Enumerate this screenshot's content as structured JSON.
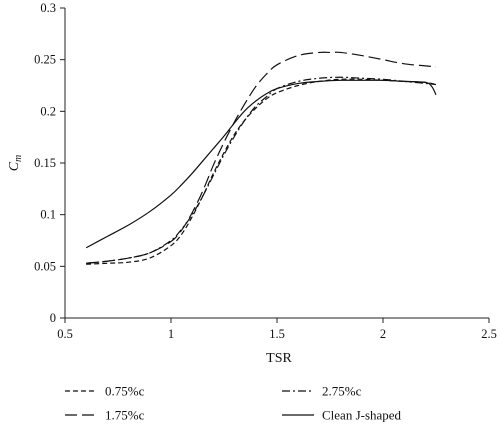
{
  "chart_data": {
    "type": "line",
    "title": "",
    "xlabel": "TSR",
    "ylabel": "C",
    "ylabel_subscript": "m",
    "xlim": [
      0.5,
      2.5
    ],
    "ylim": [
      0,
      0.3
    ],
    "xticks": [
      0.5,
      1,
      1.5,
      2,
      2.5
    ],
    "yticks": [
      0,
      0.05,
      0.1,
      0.15,
      0.2,
      0.25,
      0.3
    ],
    "xtick_labels": [
      "0.5",
      "1",
      "1.5",
      "2",
      "2.5"
    ],
    "ytick_labels": [
      "0",
      "0.05",
      "0.1",
      "0.15",
      "0.2",
      "0.25",
      "0.3"
    ],
    "grid": false,
    "legend_position": "bottom",
    "series": [
      {
        "name": "0.75%c",
        "dash": "dashed",
        "x": [
          0.6,
          0.7,
          0.8,
          0.9,
          1.0,
          1.05,
          1.1,
          1.15,
          1.2,
          1.25,
          1.3,
          1.35,
          1.4,
          1.45,
          1.5,
          1.6,
          1.7,
          1.8,
          1.9,
          2.0,
          2.1,
          2.2,
          2.25
        ],
        "y": [
          0.052,
          0.053,
          0.054,
          0.058,
          0.07,
          0.081,
          0.098,
          0.118,
          0.14,
          0.16,
          0.178,
          0.192,
          0.203,
          0.212,
          0.218,
          0.225,
          0.229,
          0.231,
          0.231,
          0.23,
          0.229,
          0.228,
          0.226
        ]
      },
      {
        "name": "1.75%c",
        "dash": "long-dashed",
        "x": [
          0.6,
          0.7,
          0.8,
          0.9,
          1.0,
          1.05,
          1.1,
          1.15,
          1.2,
          1.25,
          1.3,
          1.35,
          1.4,
          1.45,
          1.5,
          1.6,
          1.7,
          1.75,
          1.8,
          1.9,
          2.0,
          2.1,
          2.2,
          2.25
        ],
        "y": [
          0.053,
          0.055,
          0.058,
          0.063,
          0.074,
          0.085,
          0.102,
          0.123,
          0.148,
          0.17,
          0.19,
          0.208,
          0.224,
          0.236,
          0.245,
          0.254,
          0.257,
          0.257,
          0.257,
          0.254,
          0.25,
          0.246,
          0.244,
          0.243
        ]
      },
      {
        "name": "2.75%c",
        "dash": "dash-dot",
        "x": [
          0.6,
          0.7,
          0.8,
          0.9,
          1.0,
          1.05,
          1.1,
          1.15,
          1.2,
          1.25,
          1.3,
          1.35,
          1.4,
          1.45,
          1.5,
          1.6,
          1.7,
          1.8,
          1.9,
          2.0,
          2.1,
          2.2,
          2.25
        ],
        "y": [
          0.053,
          0.055,
          0.058,
          0.063,
          0.075,
          0.086,
          0.1,
          0.118,
          0.138,
          0.158,
          0.176,
          0.192,
          0.205,
          0.214,
          0.222,
          0.229,
          0.232,
          0.233,
          0.232,
          0.231,
          0.229,
          0.227,
          0.226
        ]
      },
      {
        "name": "Clean J-shaped",
        "dash": "solid",
        "x": [
          0.6,
          0.7,
          0.8,
          0.9,
          1.0,
          1.05,
          1.1,
          1.15,
          1.2,
          1.25,
          1.3,
          1.35,
          1.4,
          1.45,
          1.5,
          1.6,
          1.7,
          1.8,
          1.9,
          2.0,
          2.1,
          2.2,
          2.23,
          2.25
        ],
        "y": [
          0.068,
          0.079,
          0.09,
          0.103,
          0.119,
          0.129,
          0.14,
          0.152,
          0.164,
          0.176,
          0.189,
          0.201,
          0.21,
          0.217,
          0.222,
          0.227,
          0.229,
          0.23,
          0.23,
          0.23,
          0.229,
          0.228,
          0.224,
          0.216
        ]
      }
    ]
  }
}
